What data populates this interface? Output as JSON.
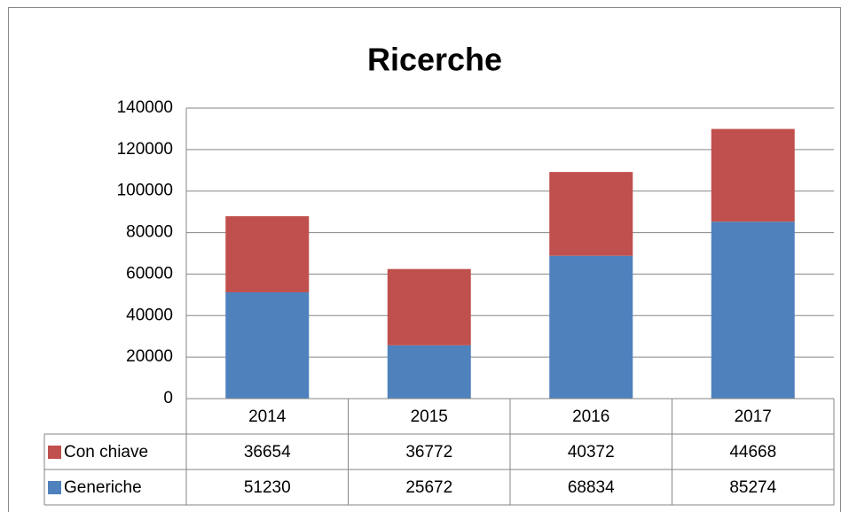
{
  "chart_data": {
    "type": "bar",
    "stacked": true,
    "title": "Ricerche",
    "categories": [
      "2014",
      "2015",
      "2016",
      "2017"
    ],
    "series": [
      {
        "name": "Con chiave",
        "color": "#c0504d",
        "values": [
          36654,
          36772,
          40372,
          44668
        ]
      },
      {
        "name": "Generiche",
        "color": "#4f81bd",
        "values": [
          51230,
          25672,
          68834,
          85274
        ]
      }
    ],
    "ylim": [
      0,
      140000
    ],
    "yticks": [
      0,
      20000,
      40000,
      60000,
      80000,
      100000,
      120000,
      140000
    ],
    "grid": true,
    "data_table": true
  }
}
